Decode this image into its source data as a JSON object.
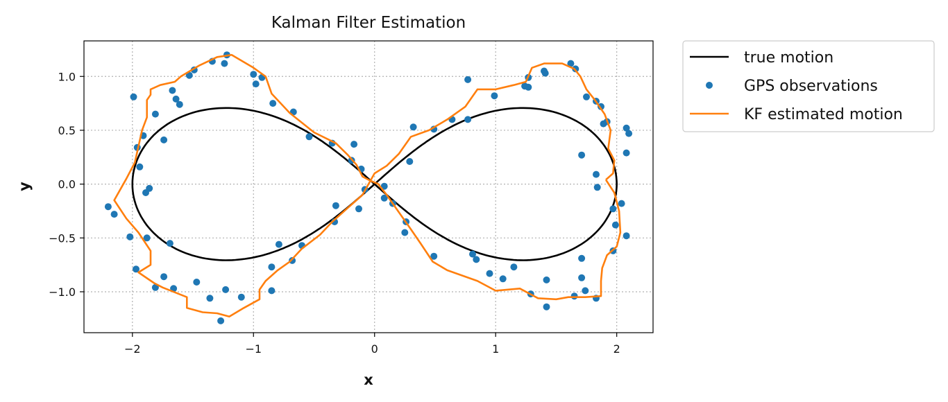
{
  "chart_data": {
    "type": "line",
    "title": "Kalman Filter Estimation",
    "xlabel": "x",
    "ylabel": "y",
    "xlim": [
      -2.4,
      2.3
    ],
    "ylim": [
      -1.38,
      1.33
    ],
    "grid": true,
    "legend_position": "outside-top-right",
    "x_ticks": [
      {
        "value": -2,
        "label": "−2"
      },
      {
        "value": -1,
        "label": "−1"
      },
      {
        "value": 0,
        "label": "0"
      },
      {
        "value": 1,
        "label": "1"
      },
      {
        "value": 2,
        "label": "2"
      }
    ],
    "y_ticks": [
      {
        "value": 1.0,
        "label": "1.0"
      },
      {
        "value": 0.5,
        "label": "0.5"
      },
      {
        "value": 0.0,
        "label": "0.0"
      },
      {
        "value": -0.5,
        "label": "−0.5"
      },
      {
        "value": -1.0,
        "label": "−1.0"
      }
    ],
    "series": [
      {
        "name": "true motion",
        "kind": "line",
        "color": "#000000",
        "description": "lemniscate: x = 2cos(t)/(1+sin^2 t), y = 2sin(t)cos(t)/(1+sin^2 t)"
      },
      {
        "name": "GPS observations",
        "kind": "scatter",
        "color": "#1f77b4",
        "points": [
          [
            -2.2,
            -0.21
          ],
          [
            -2.15,
            -0.28
          ],
          [
            -2.02,
            -0.49
          ],
          [
            -1.97,
            -0.79
          ],
          [
            -1.81,
            -0.96
          ],
          [
            -1.74,
            -0.86
          ],
          [
            -1.66,
            -0.97
          ],
          [
            -1.69,
            -0.55
          ],
          [
            -1.88,
            -0.5
          ],
          [
            -1.86,
            -0.04
          ],
          [
            -1.89,
            -0.08
          ],
          [
            -1.94,
            0.16
          ],
          [
            -1.96,
            0.34
          ],
          [
            -1.91,
            0.45
          ],
          [
            -1.74,
            0.41
          ],
          [
            -1.81,
            0.65
          ],
          [
            -1.61,
            0.74
          ],
          [
            -1.64,
            0.79
          ],
          [
            -1.67,
            0.87
          ],
          [
            -1.99,
            0.81
          ],
          [
            -1.53,
            1.01
          ],
          [
            -1.49,
            1.06
          ],
          [
            -1.34,
            1.14
          ],
          [
            -1.24,
            1.12
          ],
          [
            -1.22,
            1.2
          ],
          [
            -1.0,
            1.02
          ],
          [
            -0.93,
            0.99
          ],
          [
            -0.98,
            0.93
          ],
          [
            -0.84,
            0.75
          ],
          [
            -0.67,
            0.67
          ],
          [
            -0.54,
            0.44
          ],
          [
            -0.35,
            0.38
          ],
          [
            -0.17,
            0.37
          ],
          [
            -0.19,
            0.22
          ],
          [
            -0.11,
            0.14
          ],
          [
            -0.08,
            -0.05
          ],
          [
            -0.13,
            -0.23
          ],
          [
            -0.32,
            -0.2
          ],
          [
            -0.33,
            -0.35
          ],
          [
            -0.6,
            -0.57
          ],
          [
            -0.68,
            -0.71
          ],
          [
            -0.79,
            -0.56
          ],
          [
            -0.85,
            -0.77
          ],
          [
            -0.85,
            -0.99
          ],
          [
            -1.1,
            -1.05
          ],
          [
            -1.23,
            -0.98
          ],
          [
            -1.27,
            -1.27
          ],
          [
            -1.36,
            -1.06
          ],
          [
            -1.47,
            -0.91
          ],
          [
            0.08,
            -0.02
          ],
          [
            0.08,
            -0.13
          ],
          [
            0.15,
            -0.18
          ],
          [
            0.26,
            -0.35
          ],
          [
            0.25,
            -0.45
          ],
          [
            0.29,
            0.21
          ],
          [
            0.32,
            0.53
          ],
          [
            0.49,
            0.51
          ],
          [
            0.64,
            0.6
          ],
          [
            0.77,
            0.6
          ],
          [
            0.77,
            0.97
          ],
          [
            0.99,
            0.82
          ],
          [
            1.24,
            0.91
          ],
          [
            1.27,
            0.9
          ],
          [
            1.27,
            0.99
          ],
          [
            1.4,
            1.05
          ],
          [
            1.41,
            1.03
          ],
          [
            1.62,
            1.12
          ],
          [
            1.66,
            1.07
          ],
          [
            1.75,
            0.81
          ],
          [
            1.83,
            0.77
          ],
          [
            1.87,
            0.72
          ],
          [
            1.89,
            0.56
          ],
          [
            1.92,
            0.58
          ],
          [
            2.08,
            0.52
          ],
          [
            2.1,
            0.47
          ],
          [
            2.08,
            0.29
          ],
          [
            1.71,
            0.27
          ],
          [
            1.83,
            0.09
          ],
          [
            1.84,
            -0.03
          ],
          [
            2.04,
            -0.18
          ],
          [
            1.97,
            -0.23
          ],
          [
            1.99,
            -0.38
          ],
          [
            1.97,
            -0.62
          ],
          [
            2.08,
            -0.48
          ],
          [
            1.71,
            -0.69
          ],
          [
            1.71,
            -0.87
          ],
          [
            1.74,
            -0.99
          ],
          [
            1.83,
            -1.06
          ],
          [
            1.65,
            -1.04
          ],
          [
            1.42,
            -0.89
          ],
          [
            1.42,
            -1.14
          ],
          [
            1.29,
            -1.02
          ],
          [
            1.15,
            -0.77
          ],
          [
            1.06,
            -0.88
          ],
          [
            0.95,
            -0.83
          ],
          [
            0.81,
            -0.65
          ],
          [
            0.84,
            -0.7
          ],
          [
            0.49,
            -0.67
          ]
        ]
      },
      {
        "name": "KF estimated motion",
        "kind": "line",
        "color": "#ff7f0e",
        "points": [
          [
            1.91,
            0.04
          ],
          [
            1.98,
            -0.08
          ],
          [
            2.02,
            -0.25
          ],
          [
            2.03,
            -0.45
          ],
          [
            2.0,
            -0.58
          ],
          [
            1.92,
            -0.66
          ],
          [
            1.88,
            -0.78
          ],
          [
            1.87,
            -0.9
          ],
          [
            1.87,
            -1.04
          ],
          [
            1.74,
            -1.05
          ],
          [
            1.6,
            -1.05
          ],
          [
            1.5,
            -1.07
          ],
          [
            1.35,
            -1.06
          ],
          [
            1.2,
            -0.97
          ],
          [
            1.0,
            -0.99
          ],
          [
            0.85,
            -0.9
          ],
          [
            0.6,
            -0.8
          ],
          [
            0.48,
            -0.72
          ],
          [
            0.38,
            -0.55
          ],
          [
            0.3,
            -0.42
          ],
          [
            0.2,
            -0.26
          ],
          [
            0.1,
            -0.1
          ],
          [
            0.03,
            0.0
          ],
          [
            -0.05,
            0.04
          ],
          [
            -0.1,
            0.07
          ],
          [
            -0.15,
            0.18
          ],
          [
            -0.22,
            0.27
          ],
          [
            -0.32,
            0.38
          ],
          [
            -0.5,
            0.48
          ],
          [
            -0.7,
            0.66
          ],
          [
            -0.85,
            0.84
          ],
          [
            -0.9,
            1.0
          ],
          [
            -1.0,
            1.08
          ],
          [
            -1.18,
            1.2
          ],
          [
            -1.3,
            1.18
          ],
          [
            -1.45,
            1.1
          ],
          [
            -1.6,
            1.0
          ],
          [
            -1.65,
            0.95
          ],
          [
            -1.77,
            0.92
          ],
          [
            -1.85,
            0.88
          ],
          [
            -1.85,
            0.83
          ],
          [
            -1.88,
            0.78
          ],
          [
            -1.88,
            0.62
          ],
          [
            -1.92,
            0.5
          ],
          [
            -1.95,
            0.35
          ],
          [
            -1.98,
            0.2
          ],
          [
            -2.05,
            0.05
          ],
          [
            -2.15,
            -0.15
          ],
          [
            -2.05,
            -0.32
          ],
          [
            -1.95,
            -0.45
          ],
          [
            -1.85,
            -0.62
          ],
          [
            -1.85,
            -0.75
          ],
          [
            -1.95,
            -0.82
          ],
          [
            -1.82,
            -0.92
          ],
          [
            -1.75,
            -0.96
          ],
          [
            -1.55,
            -1.05
          ],
          [
            -1.55,
            -1.15
          ],
          [
            -1.42,
            -1.19
          ],
          [
            -1.3,
            -1.2
          ],
          [
            -1.2,
            -1.23
          ],
          [
            -1.08,
            -1.15
          ],
          [
            -0.95,
            -1.07
          ],
          [
            -0.95,
            -0.98
          ],
          [
            -0.9,
            -0.9
          ],
          [
            -0.8,
            -0.8
          ],
          [
            -0.7,
            -0.72
          ],
          [
            -0.6,
            -0.6
          ],
          [
            -0.45,
            -0.47
          ],
          [
            -0.35,
            -0.35
          ],
          [
            -0.2,
            -0.2
          ],
          [
            -0.1,
            -0.1
          ],
          [
            -0.05,
            0.0
          ],
          [
            0.0,
            0.1
          ],
          [
            0.1,
            0.17
          ],
          [
            0.2,
            0.28
          ],
          [
            0.3,
            0.44
          ],
          [
            0.45,
            0.5
          ],
          [
            0.6,
            0.6
          ],
          [
            0.75,
            0.72
          ],
          [
            0.85,
            0.88
          ],
          [
            1.0,
            0.88
          ],
          [
            1.15,
            0.92
          ],
          [
            1.25,
            0.95
          ],
          [
            1.3,
            1.08
          ],
          [
            1.4,
            1.12
          ],
          [
            1.55,
            1.12
          ],
          [
            1.65,
            1.07
          ],
          [
            1.7,
            1.0
          ],
          [
            1.75,
            0.88
          ],
          [
            1.82,
            0.78
          ],
          [
            1.9,
            0.65
          ],
          [
            1.95,
            0.5
          ],
          [
            1.93,
            0.33
          ],
          [
            1.98,
            0.22
          ],
          [
            1.97,
            0.1
          ],
          [
            1.91,
            0.04
          ]
        ]
      }
    ]
  }
}
